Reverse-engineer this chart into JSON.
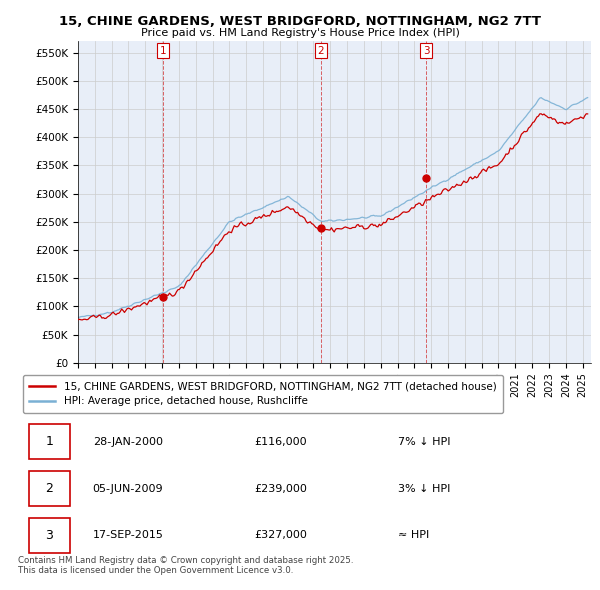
{
  "title": "15, CHINE GARDENS, WEST BRIDGFORD, NOTTINGHAM, NG2 7TT",
  "subtitle": "Price paid vs. HM Land Registry's House Price Index (HPI)",
  "yticks": [
    0,
    50000,
    100000,
    150000,
    200000,
    250000,
    300000,
    350000,
    400000,
    450000,
    500000,
    550000
  ],
  "ytick_labels": [
    "£0",
    "£50K",
    "£100K",
    "£150K",
    "£200K",
    "£250K",
    "£300K",
    "£350K",
    "£400K",
    "£450K",
    "£500K",
    "£550K"
  ],
  "legend_line1": "15, CHINE GARDENS, WEST BRIDGFORD, NOTTINGHAM, NG2 7TT (detached house)",
  "legend_line2": "HPI: Average price, detached house, Rushcliffe",
  "sale1_date": "28-JAN-2000",
  "sale1_price": 116000,
  "sale1_note": "7% ↓ HPI",
  "sale2_date": "05-JUN-2009",
  "sale2_price": 239000,
  "sale2_note": "3% ↓ HPI",
  "sale3_date": "17-SEP-2015",
  "sale3_price": 327000,
  "sale3_note": "≈ HPI",
  "footer": "Contains HM Land Registry data © Crown copyright and database right 2025.\nThis data is licensed under the Open Government Licence v3.0.",
  "red_color": "#cc0000",
  "blue_color": "#7ab0d4",
  "grid_color": "#cccccc",
  "chart_bg": "#e8eef8"
}
